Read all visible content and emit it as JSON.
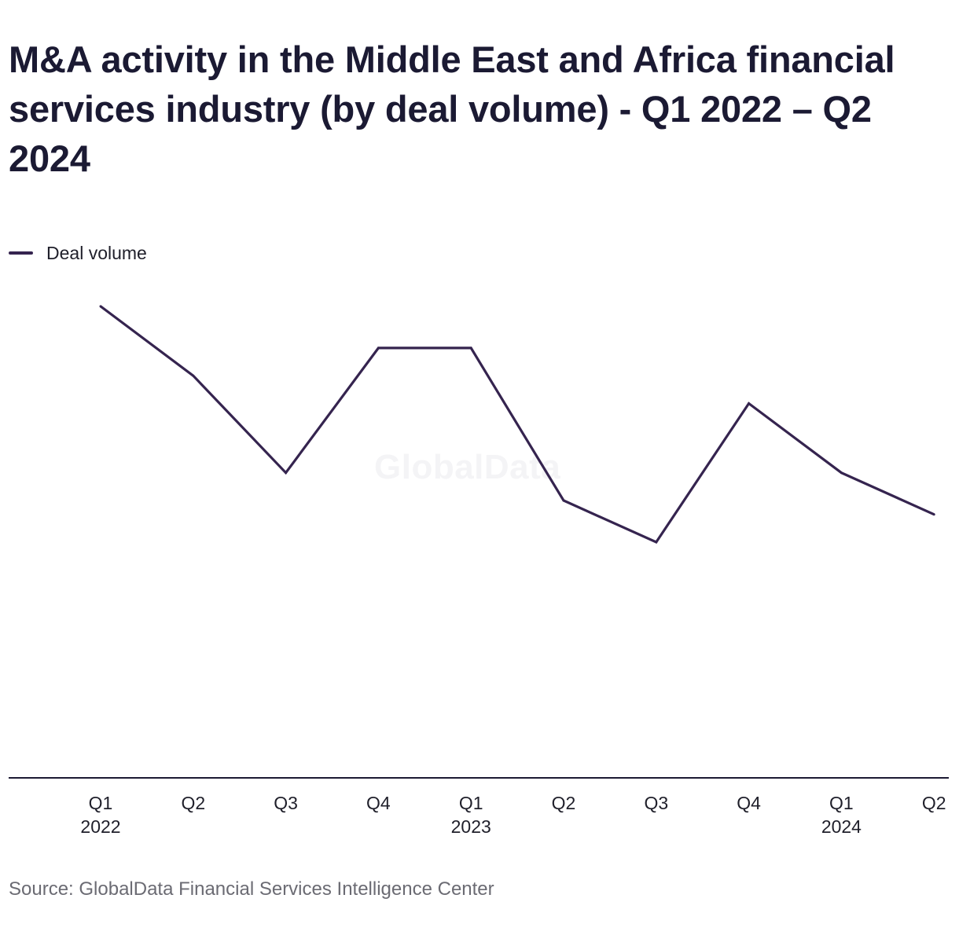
{
  "title": "M&A activity in the Middle East and Africa financial services industry (by deal volume) - Q1 2022 – Q2 2024",
  "source": "Source: GlobalData Financial Services Intelligence Center",
  "watermark": "GlobalData",
  "colors": {
    "line": "#35244f",
    "axis": "#1c1a33",
    "text": "#1f1f2a"
  },
  "chart_data": {
    "type": "line",
    "title": "M&A activity in the Middle East and Africa financial services industry (by deal volume) - Q1 2022 – Q2 2024",
    "xlabel": "",
    "ylabel": "",
    "grid": false,
    "legend_position": "top-left",
    "categories": [
      "Q1 2022",
      "Q2 2022",
      "Q3 2022",
      "Q4 2022",
      "Q1 2023",
      "Q2 2023",
      "Q3 2023",
      "Q4 2023",
      "Q1 2024",
      "Q2 2024"
    ],
    "tick_labels": [
      {
        "quarter": "Q1",
        "year": "2022"
      },
      {
        "quarter": "Q2",
        "year": ""
      },
      {
        "quarter": "Q3",
        "year": ""
      },
      {
        "quarter": "Q4",
        "year": ""
      },
      {
        "quarter": "Q1",
        "year": "2023"
      },
      {
        "quarter": "Q2",
        "year": ""
      },
      {
        "quarter": "Q3",
        "year": ""
      },
      {
        "quarter": "Q4",
        "year": ""
      },
      {
        "quarter": "Q1",
        "year": "2024"
      },
      {
        "quarter": "Q2",
        "year": ""
      }
    ],
    "ylim": [
      0,
      34
    ],
    "series": [
      {
        "name": "Deal volume",
        "values": [
          34,
          29,
          22,
          31,
          31,
          20,
          17,
          27,
          22,
          19
        ]
      }
    ]
  }
}
